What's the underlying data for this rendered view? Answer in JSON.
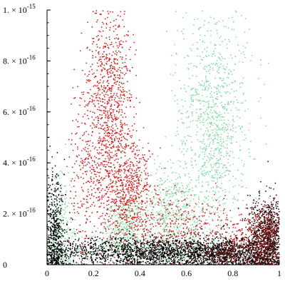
{
  "chart_data": {
    "type": "scatter",
    "title": "",
    "xlabel": "",
    "ylabel": "",
    "xlim": [
      0,
      1
    ],
    "ylim": [
      0,
      1e-15
    ],
    "grid": false,
    "legend": "none",
    "x_ticks": [
      {
        "value": 0,
        "label": "0"
      },
      {
        "value": 0.2,
        "label": "0.2"
      },
      {
        "value": 0.4,
        "label": "0.4"
      },
      {
        "value": 0.6,
        "label": "0.6"
      },
      {
        "value": 0.8,
        "label": "0.8"
      },
      {
        "value": 1,
        "label": "1"
      }
    ],
    "y_ticks": [
      {
        "value": 0,
        "mantissa": "0",
        "exponent": ""
      },
      {
        "value": 2e-16,
        "mantissa": "2. × 10",
        "exponent": "-16"
      },
      {
        "value": 4e-16,
        "mantissa": "4. × 10",
        "exponent": "-16"
      },
      {
        "value": 6e-16,
        "mantissa": "6. × 10",
        "exponent": "-16"
      },
      {
        "value": 8e-16,
        "mantissa": "8. × 10",
        "exponent": "-16"
      },
      {
        "value": 1e-15,
        "mantissa": "1. × 10",
        "exponent": "-15"
      }
    ],
    "series": [
      {
        "color": "#7ddc9f",
        "count": 2600,
        "clusters": [
          {
            "x": 0.72,
            "y": 5.6e-16,
            "sx": 0.075,
            "sy": 2.4e-16,
            "w": 0.42
          },
          {
            "x": 0.54,
            "y": 2.2e-16,
            "sx": 0.06,
            "sy": 9e-17,
            "w": 0.16
          },
          {
            "x": 0.34,
            "y": 1.6e-16,
            "sx": 0.04,
            "sy": 6e-17,
            "w": 0.14
          },
          {
            "x": 0.05,
            "y": 1.2e-16,
            "sx": 0.03,
            "sy": 1.2e-16,
            "w": 0.12
          },
          {
            "x": 0.45,
            "y": 6e-17,
            "sx": 0.25,
            "sy": 3e-17,
            "w": 0.16
          }
        ]
      },
      {
        "color": "#e01010",
        "count": 2400,
        "clusters": [
          {
            "x": 0.27,
            "y": 6e-16,
            "sx": 0.05,
            "sy": 2.4e-16,
            "w": 0.42
          },
          {
            "x": 0.36,
            "y": 3e-16,
            "sx": 0.05,
            "sy": 1e-16,
            "w": 0.2
          },
          {
            "x": 0.55,
            "y": 1.4e-16,
            "sx": 0.15,
            "sy": 7e-17,
            "w": 0.18
          },
          {
            "x": 0.87,
            "y": 1e-16,
            "sx": 0.08,
            "sy": 6e-17,
            "w": 0.1
          },
          {
            "x": 0.16,
            "y": 3.6e-16,
            "sx": 0.04,
            "sy": 1.8e-16,
            "w": 0.1
          }
        ]
      },
      {
        "color": "#000000",
        "count": 3600,
        "clusters": [
          {
            "x": 0.5,
            "y": 5e-17,
            "sx": 0.3,
            "sy": 3e-17,
            "w": 0.55
          },
          {
            "x": 0.03,
            "y": 1.2e-16,
            "sx": 0.025,
            "sy": 1.2e-16,
            "w": 0.16
          },
          {
            "x": 0.95,
            "y": 1e-16,
            "sx": 0.04,
            "sy": 8e-17,
            "w": 0.16
          },
          {
            "x": 0.78,
            "y": 4e-17,
            "sx": 0.12,
            "sy": 2.5e-17,
            "w": 0.13
          }
        ]
      },
      {
        "color": "#6b0a0a",
        "count": 900,
        "clusters": [
          {
            "x": 0.95,
            "y": 1.1e-16,
            "sx": 0.04,
            "sy": 7e-17,
            "w": 0.7
          },
          {
            "x": 0.8,
            "y": 5e-17,
            "sx": 0.08,
            "sy": 3e-17,
            "w": 0.3
          }
        ]
      }
    ]
  }
}
